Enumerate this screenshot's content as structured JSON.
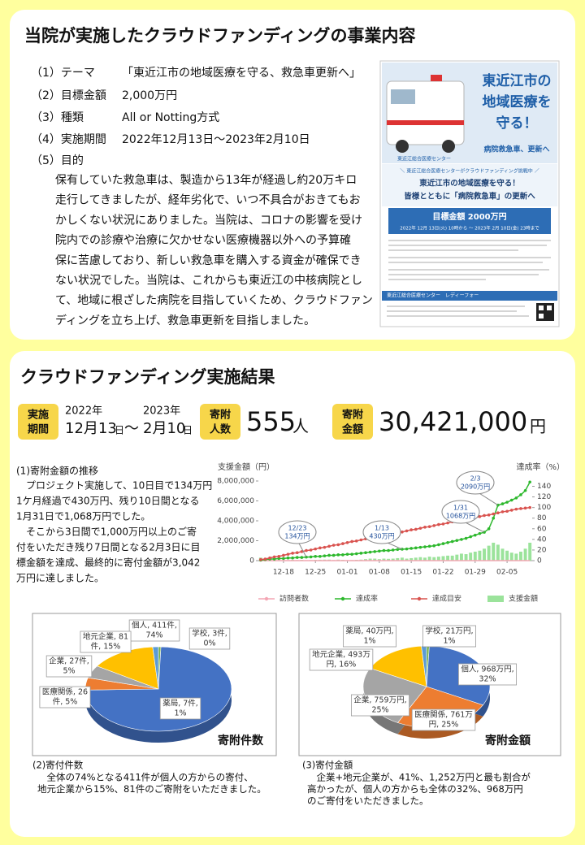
{
  "header": {
    "title": "当院が実施したクラウドファンディングの事業内容"
  },
  "overview": {
    "items": [
      {
        "label": "（1）テーマ",
        "value": "「東近江市の地域医療を守る、救急車更新へ」"
      },
      {
        "label": "（2）目標金額",
        "value": "2,000万円"
      },
      {
        "label": "（3）種類",
        "value": "All or Notting方式"
      },
      {
        "label": "（4）実施期間",
        "value": "2022年12月13日～2023年2月10日"
      }
    ],
    "purpose_label": "（5）目的",
    "purpose_lines": [
      "保有していた救急車は、製造から13年が経過し約20万キロ",
      "走行してきましたが、経年劣化で、いつ不具合がおきてもお",
      "かしくない状況にありました。当院は、コロナの影響を受け",
      "院内での診療や治療に欠かせない医療機器以外への予算確",
      "保に苦慮しており、新しい救急車を購入する資金が確保でき",
      "ない状況でした。当院は、これからも東近江の中核病院とし",
      "て、地域に根ざした病院を目指していくため、クラウドファン",
      "ディングを立ち上げ、救急車更新を目指しました。"
    ]
  },
  "poster": {
    "title_lines": [
      "東近江市の",
      "地域医療を",
      "守る！"
    ],
    "subtitle": "病院救急車、更新へ",
    "org": "東近江総合医療センター",
    "banner": "＼ 東近江総合医療センターがクラウドファンディング挑戦中 ／",
    "headline1": "東近江市の地域医療を守る！",
    "headline2": "皆様とともに「病院救急車」の更新へ",
    "goal": "目標金額 2000万円",
    "period": "2022年 12月 13日(火) 10時から 〜 2023年 2月 10日(金) 23時まで",
    "footer": "東近江総合医療センター　レディーフォー"
  },
  "results": {
    "title": "クラウドファンディング実施結果",
    "period_badge": [
      "実施",
      "期間"
    ],
    "start_year": "2022年",
    "start_date": "12月13",
    "day1": "日",
    "tilde": "～",
    "end_year": "2023年",
    "end_date": "2月10",
    "day2": "日",
    "donors_badge": [
      "寄附",
      "人数"
    ],
    "donors": "555",
    "donors_unit": "人",
    "amount_badge": [
      "寄附",
      "金額"
    ],
    "amount": "30,421,000",
    "amount_unit": "円"
  },
  "trend_text": {
    "title": "(1)寄附金額の推移",
    "lines": [
      "　プロジェクト実施して、10日目で134万円",
      "1ケ月経過で430万円、残り10日間となる",
      "1月31日で1,068万円でした。",
      "　そこから3日間で1,000万円以上のご寄",
      "付をいただき残り7日間となる2月3日に目",
      "標金額を達成、最終的に寄付金額が3,042",
      "万円に達しました。"
    ]
  },
  "chart_data": [
    {
      "type": "combo",
      "ylabel": "支援金額（円）",
      "y2label": "達成率（%）",
      "categories": [
        null,
        null,
        null,
        null,
        null,
        "12-18",
        null,
        null,
        null,
        null,
        null,
        null,
        "12-25",
        null,
        null,
        null,
        null,
        null,
        null,
        "01-01",
        null,
        null,
        null,
        null,
        null,
        null,
        "01-08",
        null,
        null,
        null,
        null,
        null,
        null,
        "01-15",
        null,
        null,
        null,
        null,
        null,
        null,
        "01-22",
        null,
        null,
        null,
        null,
        null,
        null,
        "01-29",
        null,
        null,
        null,
        null,
        null,
        null,
        "02-05",
        null,
        null,
        null,
        null,
        null
      ],
      "ylim": [
        0,
        8000000
      ],
      "yticks": [
        0,
        {
          "value": 2000000,
          "label": "2,000,000"
        },
        {
          "value": 4000000,
          "label": "4,000,000"
        },
        {
          "value": 6000000,
          "label": "6,000,000"
        },
        {
          "value": 8000000,
          "label": "8,000,000"
        }
      ],
      "y2lim": [
        0,
        150
      ],
      "y2ticks": [
        0,
        20,
        40,
        60,
        80,
        100,
        120,
        140
      ],
      "series": [
        {
          "name": "訪問者数",
          "kind": "line",
          "color": "#f4a6b4",
          "values": [
            300,
            250,
            200,
            150,
            150,
            120,
            120,
            130,
            110,
            120,
            100,
            110,
            120,
            130,
            120,
            110,
            100,
            120,
            110,
            90,
            100,
            110,
            120,
            130,
            140,
            150,
            140,
            150,
            140,
            150,
            160,
            170,
            150,
            160,
            170,
            180,
            170,
            190,
            180,
            190,
            200,
            210,
            200,
            220,
            230,
            220,
            240,
            250,
            260,
            280,
            300,
            350,
            320,
            280,
            250,
            230,
            220,
            240,
            280,
            350
          ]
        },
        {
          "name": "達成率",
          "kind": "line",
          "axis": "y2",
          "markers": true,
          "color": "#2db82d",
          "values": [
            1,
            2,
            3,
            3,
            4,
            4,
            5,
            5,
            6,
            6,
            6.7,
            7,
            8,
            8,
            9,
            10,
            10,
            11,
            11,
            12,
            12,
            13,
            14,
            15,
            16,
            17,
            18,
            19,
            19,
            20,
            21,
            21.5,
            22,
            23,
            24,
            25,
            26,
            27,
            28,
            30,
            32,
            34,
            36,
            38,
            40,
            42,
            45,
            48,
            51,
            53.4,
            60,
            80,
            104.5,
            107,
            110,
            114,
            118,
            124,
            132,
            148
          ]
        },
        {
          "name": "達成目安",
          "kind": "line",
          "axis": "y2",
          "markers": true,
          "color": "#d9534f",
          "values": [
            2,
            3,
            5,
            7,
            8,
            10,
            12,
            14,
            15,
            17,
            19,
            20,
            22,
            24,
            25,
            27,
            29,
            30,
            32,
            34,
            36,
            37,
            39,
            41,
            42,
            44,
            46,
            47,
            49,
            51,
            52,
            54,
            56,
            58,
            59,
            61,
            63,
            64,
            66,
            68,
            69,
            71,
            73,
            75,
            76,
            78,
            80,
            81,
            83,
            85,
            86,
            88,
            90,
            92,
            93,
            95,
            97,
            98,
            99,
            100
          ]
        },
        {
          "name": "支援金額",
          "kind": "bar",
          "color": "#9be39b",
          "values": [
            300000,
            150000,
            100000,
            50000,
            50000,
            50000,
            50000,
            80000,
            60000,
            80000,
            50000,
            60000,
            80000,
            90000,
            100000,
            100000,
            60000,
            100000,
            80000,
            50000,
            60000,
            80000,
            100000,
            150000,
            200000,
            200000,
            150000,
            200000,
            180000,
            200000,
            250000,
            300000,
            200000,
            250000,
            300000,
            350000,
            300000,
            400000,
            350000,
            400000,
            450000,
            500000,
            500000,
            600000,
            700000,
            650000,
            800000,
            900000,
            1000000,
            1200000,
            1500000,
            1800000,
            1600000,
            1200000,
            1000000,
            800000,
            700000,
            900000,
            1200000,
            1800000
          ]
        }
      ],
      "annotations": [
        {
          "lines": [
            "12/23",
            "134万円"
          ]
        },
        {
          "lines": [
            "1/13",
            "430万円"
          ]
        },
        {
          "lines": [
            "1/31",
            "1068万円"
          ]
        },
        {
          "lines": [
            "2/3",
            "2090万円"
          ]
        }
      ]
    },
    {
      "type": "pie",
      "title": "寄附件数",
      "values": [
        3,
        411,
        26,
        27,
        81,
        7
      ],
      "value_labels": [
        [
          "学校, 3件,",
          "0%"
        ],
        [
          "個人, 411件,",
          "74%"
        ],
        [
          "医療関係, 26",
          "件, 5%"
        ],
        [
          "企業, 27件,",
          "5%"
        ],
        [
          "地元企業, 81",
          "件, 15%"
        ],
        [
          "薬局, 7件,",
          "1%"
        ]
      ],
      "colors": [
        "#70ad47",
        "#4472c4",
        "#ed7d31",
        "#a5a5a5",
        "#ffc000",
        "#5b9bd5"
      ]
    },
    {
      "type": "pie",
      "title": "寄附金額",
      "values": [
        21,
        968,
        761,
        759,
        493,
        40
      ],
      "value_labels": [
        [
          "学校, 21万円,",
          "1%"
        ],
        [
          "個人, 968万円,",
          "32%"
        ],
        [
          "医療関係, 761万",
          "円, 25%"
        ],
        [
          "企業, 759万円,",
          "25%"
        ],
        [
          "地元企業, 493万",
          "円, 16%"
        ],
        [
          "薬局, 40万円,",
          "1%"
        ]
      ],
      "colors": [
        "#70ad47",
        "#4472c4",
        "#ed7d31",
        "#a5a5a5",
        "#ffc000",
        "#5b9bd5"
      ]
    }
  ],
  "captions": [
    {
      "title": "(2)寄付件数",
      "lines": [
        "　全体の74%となる411件が個人の方からの寄付、",
        "地元企業から15%、81件のご寄附をいただきました。"
      ]
    },
    {
      "title": "(3)寄付金額",
      "lines": [
        "　企業+地元企業が、41%、1,252万円と最も割合が",
        "高かったが、個人の方からも全体の32%、968万円",
        "のご寄付をいただきました。"
      ]
    }
  ]
}
